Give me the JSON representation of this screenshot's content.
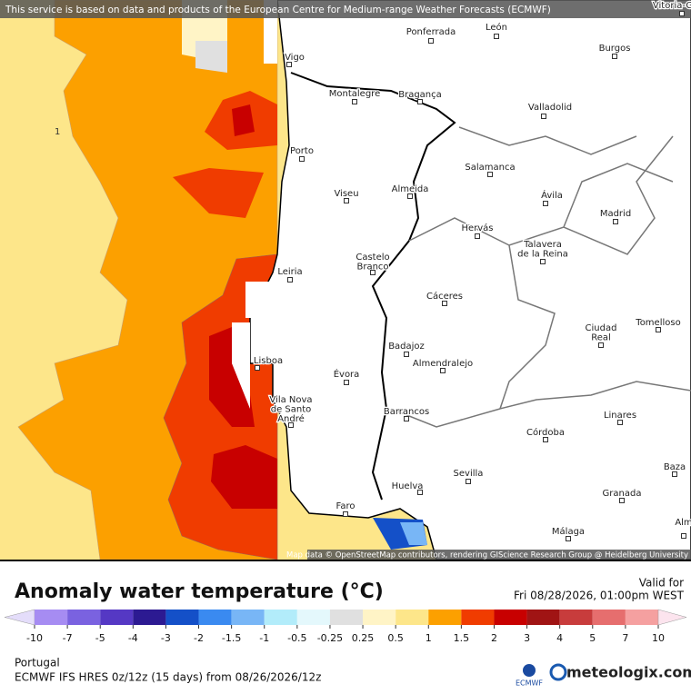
{
  "banner": "This service is based on data and products of the European Centre for Medium-range Weather Forecasts (ECMWF)",
  "map": {
    "contour_label": "1",
    "attribution": "Map data © OpenStreetMap contributors, rendering GIScience Research Group @ Heidelberg University",
    "cities": [
      {
        "lines": [
          "Vitoria-G"
        ]
      },
      {
        "lines": [
          "Ponferrada"
        ]
      },
      {
        "lines": [
          "León"
        ]
      },
      {
        "lines": [
          "Burgos"
        ]
      },
      {
        "lines": [
          "Vigo"
        ]
      },
      {
        "lines": [
          "Montalegre"
        ]
      },
      {
        "lines": [
          "Bragança"
        ]
      },
      {
        "lines": [
          "Valladolid"
        ]
      },
      {
        "lines": [
          "Porto"
        ]
      },
      {
        "lines": [
          "Salamanca"
        ]
      },
      {
        "lines": [
          "Viseu"
        ]
      },
      {
        "lines": [
          "Almeida"
        ]
      },
      {
        "lines": [
          "Ávila"
        ]
      },
      {
        "lines": [
          "Madrid"
        ]
      },
      {
        "lines": [
          "Hervás"
        ]
      },
      {
        "lines": [
          "Talavera",
          "de la Reina"
        ]
      },
      {
        "lines": [
          "Castelo",
          "Branco"
        ]
      },
      {
        "lines": [
          "Leiria"
        ]
      },
      {
        "lines": [
          "Cáceres"
        ]
      },
      {
        "lines": [
          "Ciudad",
          "Real"
        ]
      },
      {
        "lines": [
          "Tomelloso"
        ]
      },
      {
        "lines": [
          "Badajoz"
        ]
      },
      {
        "lines": [
          "Lisboa"
        ]
      },
      {
        "lines": [
          "Évora"
        ]
      },
      {
        "lines": [
          "Almendralejo"
        ]
      },
      {
        "lines": [
          "Vila Nova",
          "de Santo",
          "André"
        ]
      },
      {
        "lines": [
          "Barrancos"
        ]
      },
      {
        "lines": [
          "Linares"
        ]
      },
      {
        "lines": [
          "Córdoba"
        ]
      },
      {
        "lines": [
          "Baza"
        ]
      },
      {
        "lines": [
          "Huelva"
        ]
      },
      {
        "lines": [
          "Sevilla"
        ]
      },
      {
        "lines": [
          "Granada"
        ]
      },
      {
        "lines": [
          "Faro"
        ]
      },
      {
        "lines": [
          "Málaga"
        ]
      },
      {
        "lines": [
          "Alm"
        ]
      }
    ]
  },
  "legend": {
    "title": "Anomaly water temperature (°C)",
    "valid_label": "Valid for",
    "valid_time": "Fri 08/28/2026, 01:00pm WEST",
    "ticks": [
      -10,
      -7,
      -5,
      -4,
      -3,
      -2,
      -1.5,
      -1,
      -0.5,
      -0.25,
      0.25,
      0.5,
      1,
      1.5,
      2,
      3,
      4,
      5,
      7,
      10
    ],
    "colors": [
      "#e4ddfa",
      "#a68cf2",
      "#7a62e0",
      "#5538c4",
      "#2c1a92",
      "#1450c8",
      "#3a8af0",
      "#78b6f6",
      "#b2ecfa",
      "#e4f8fc",
      "#e0e0e0",
      "#fff4c6",
      "#fde68a",
      "#fca000",
      "#f03c00",
      "#c80000",
      "#a01414",
      "#c83c3c",
      "#e66e6e",
      "#f5a0a0",
      "#fce4ee"
    ]
  },
  "footer": {
    "region": "Portugal",
    "model": "ECMWF IFS HRES 0z/12z (15 days) from  08/26/2026/12z",
    "ecmwf": "ECMWF",
    "brand": "meteologix.com"
  }
}
